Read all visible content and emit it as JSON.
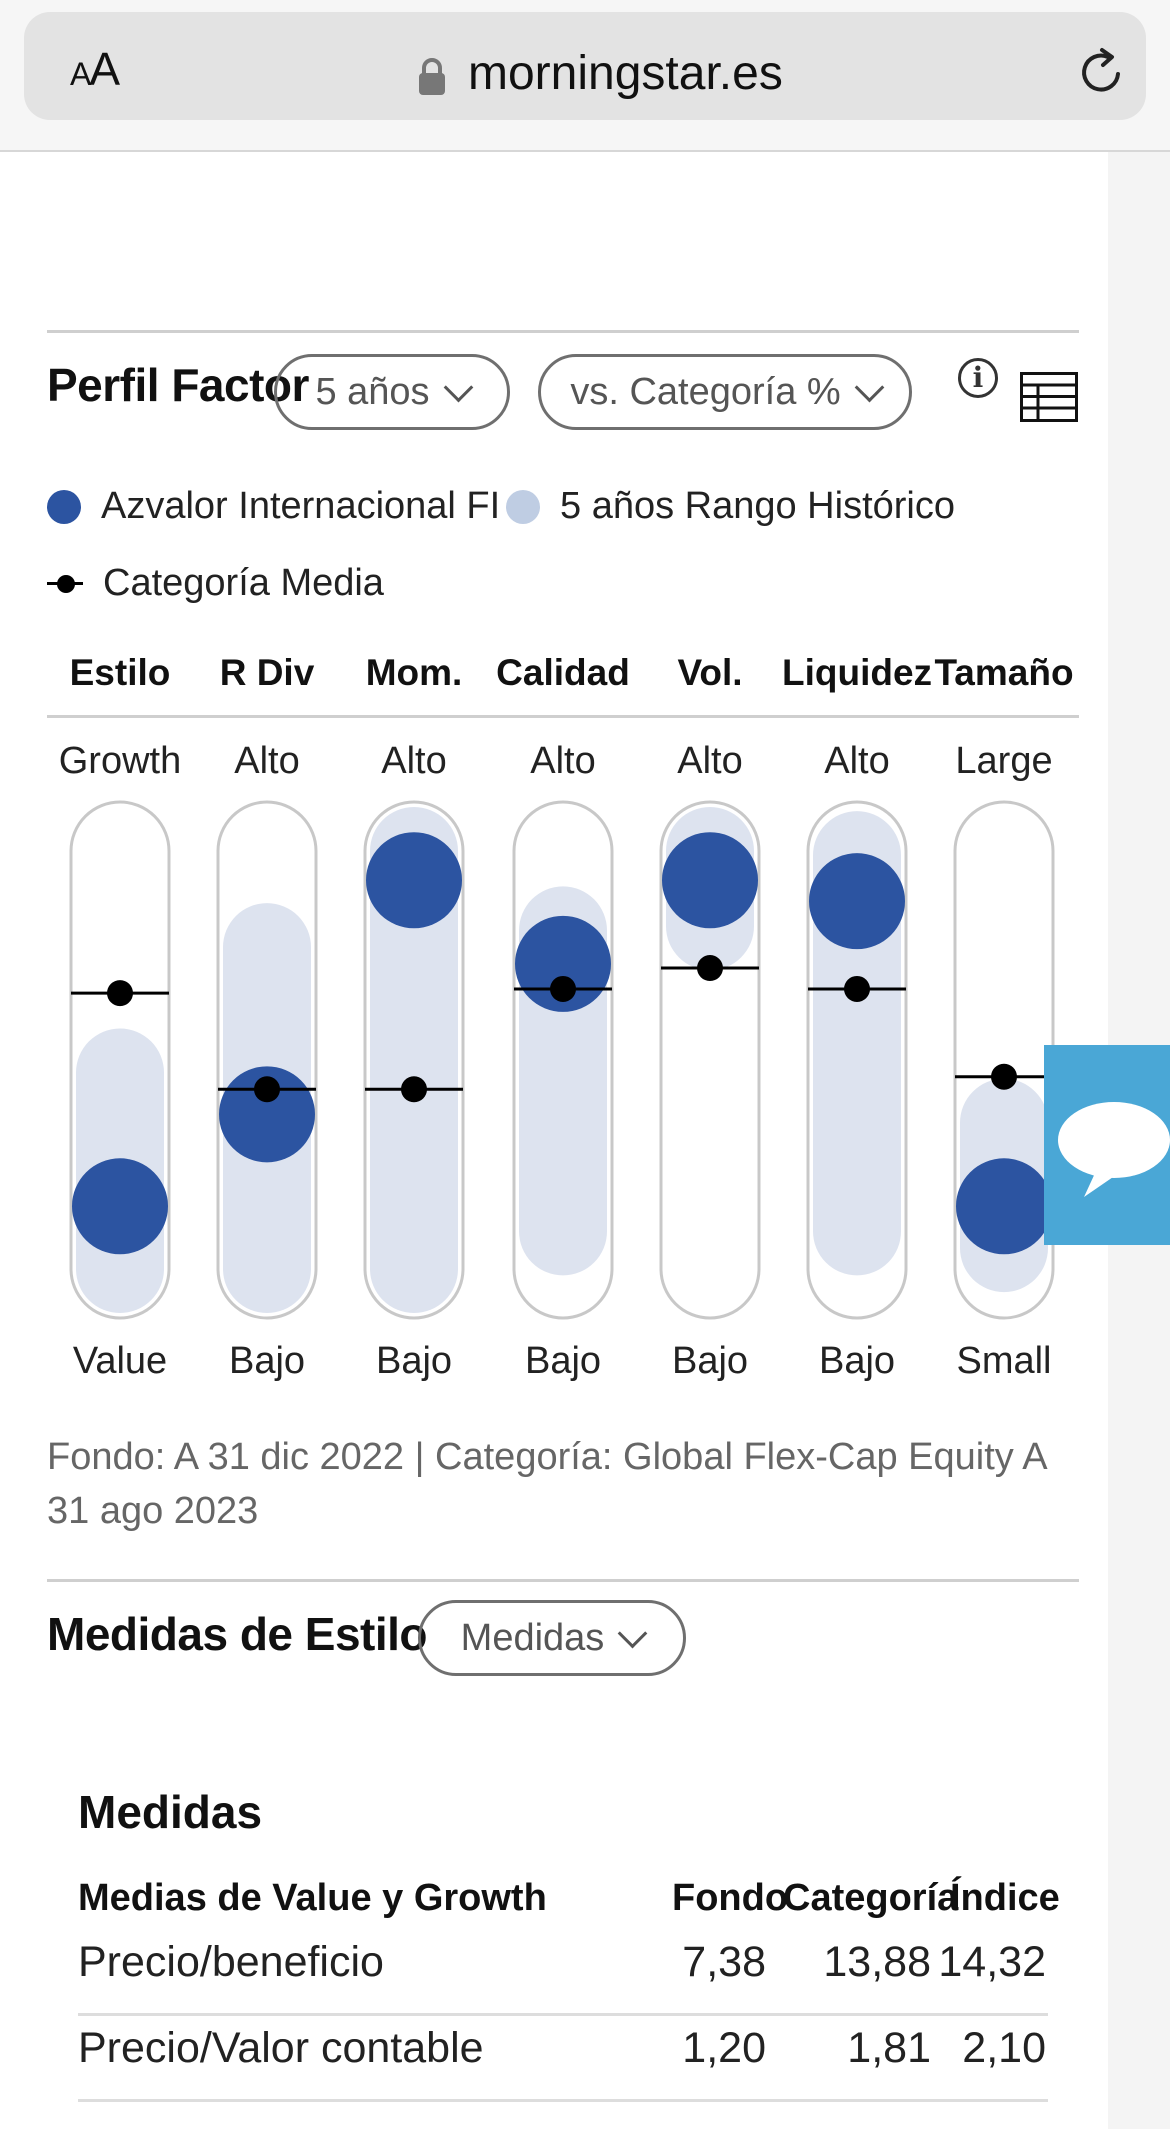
{
  "browser": {
    "text_size_label_small": "A",
    "text_size_label_large": "A",
    "url": "morningstar.es"
  },
  "factor_profile": {
    "title": "Perfil Factor",
    "period_select": "5 años",
    "comparison_select": "vs. Categoría %",
    "legend": {
      "fund": "Azvalor Internacional FI",
      "range": "5 años Rango Histórico",
      "category": "Categoría Media"
    },
    "colors": {
      "fund": "#2c54a1",
      "range": "#dde3ef",
      "track_border": "#c8c8c8",
      "category": "#000000"
    },
    "columns": [
      {
        "head": "Estilo",
        "top": "Growth",
        "bottom": "Value"
      },
      {
        "head": "R Div",
        "top": "Alto",
        "bottom": "Bajo"
      },
      {
        "head": "Mom.",
        "top": "Alto",
        "bottom": "Bajo"
      },
      {
        "head": "Calidad",
        "top": "Alto",
        "bottom": "Bajo"
      },
      {
        "head": "Vol.",
        "top": "Alto",
        "bottom": "Bajo"
      },
      {
        "head": "Liquidez",
        "top": "Alto",
        "bottom": "Bajo"
      },
      {
        "head": "Tamaño",
        "top": "Large",
        "bottom": "Small"
      }
    ],
    "footnote": "Fondo: A 31 dic 2022 | Categoría: Global Flex-Cap Equity A 31 ago 2023"
  },
  "chart_data": {
    "type": "scatter",
    "categories": [
      "Estilo",
      "R Div",
      "Mom.",
      "Calidad",
      "Vol.",
      "Liquidez",
      "Tamaño"
    ],
    "ylim": [
      0,
      100
    ],
    "series": [
      {
        "name": "Azvalor Internacional FI",
        "values": [
          15,
          37,
          93,
          73,
          93,
          88,
          15
        ]
      },
      {
        "name": "Categoría Media",
        "values": [
          66,
          43,
          43,
          67,
          72,
          67,
          46
        ]
      }
    ],
    "ranges": [
      [
        0,
        47
      ],
      [
        0,
        77
      ],
      [
        0,
        100
      ],
      [
        9,
        81
      ],
      [
        82,
        100
      ],
      [
        9,
        99
      ],
      [
        5,
        35
      ]
    ]
  },
  "style_measures": {
    "title": "Medidas de Estilo",
    "select": "Medidas",
    "subtitle": "Medidas",
    "table_headers": [
      "Medias de Value y Growth",
      "Fondo",
      "Categoría",
      "Índice"
    ],
    "rows": [
      {
        "label": "Precio/beneficio",
        "fund": "7,38",
        "category": "13,88",
        "index": "14,32"
      },
      {
        "label": "Precio/Valor contable",
        "fund": "1,20",
        "category": "1,81",
        "index": "2,10"
      }
    ]
  }
}
